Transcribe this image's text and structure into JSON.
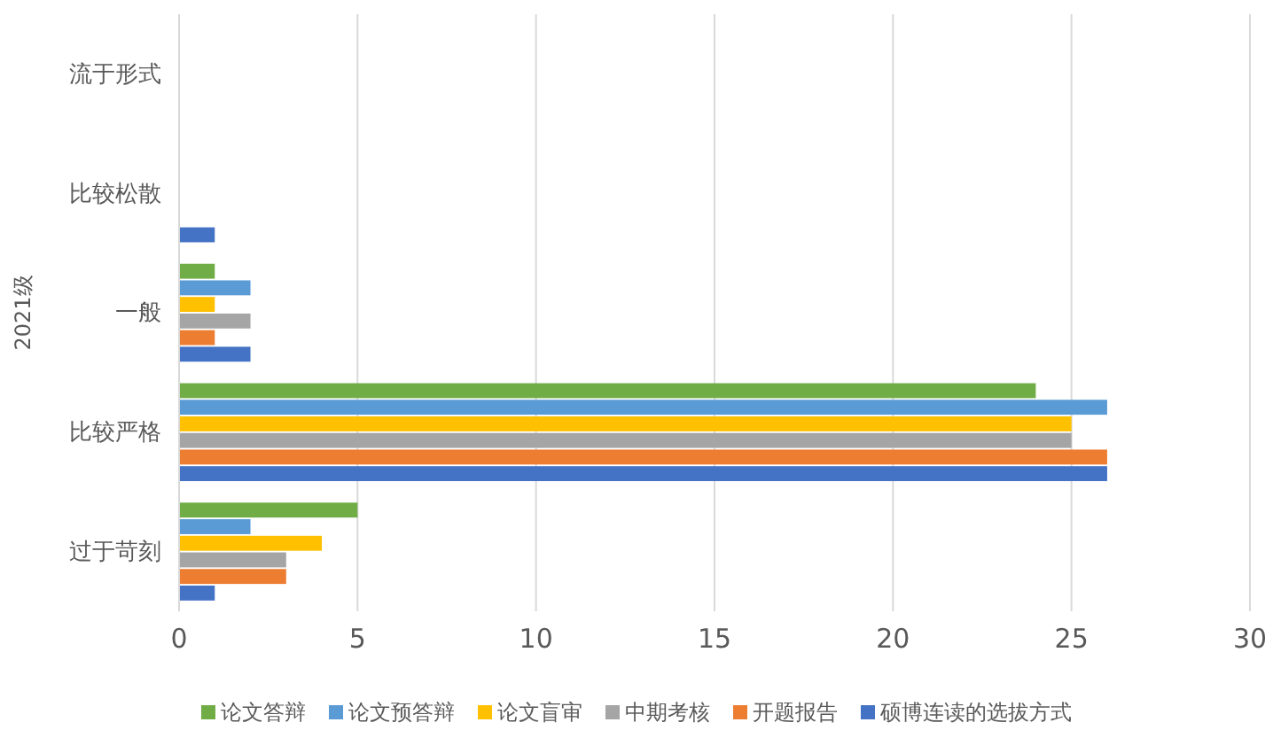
{
  "chart_data": {
    "type": "bar",
    "orientation": "horizontal",
    "ylabel": "2021级",
    "categories": [
      "流于形式",
      "比较松散",
      "一般",
      "比较严格",
      "过于苛刻"
    ],
    "series": [
      {
        "name": "论文答辩",
        "color": "#70ad47",
        "values": [
          0,
          0,
          1,
          24,
          5
        ]
      },
      {
        "name": "论文预答辩",
        "color": "#5b9bd5",
        "values": [
          0,
          0,
          2,
          26,
          2
        ]
      },
      {
        "name": "论文盲审",
        "color": "#ffc000",
        "values": [
          0,
          0,
          1,
          25,
          4
        ]
      },
      {
        "name": "中期考核",
        "color": "#a5a5a5",
        "values": [
          0,
          0,
          2,
          25,
          3
        ]
      },
      {
        "name": "开题报告",
        "color": "#ed7d31",
        "values": [
          0,
          0,
          1,
          26,
          3
        ]
      },
      {
        "name": "硕博连读的选拔方式",
        "color": "#4472c4",
        "values": [
          0,
          1,
          2,
          26,
          1
        ]
      }
    ],
    "xlim": [
      0,
      30
    ],
    "xticks": [
      0,
      5,
      10,
      15,
      20,
      25,
      30
    ],
    "grid": "x",
    "legend": "bottom"
  }
}
